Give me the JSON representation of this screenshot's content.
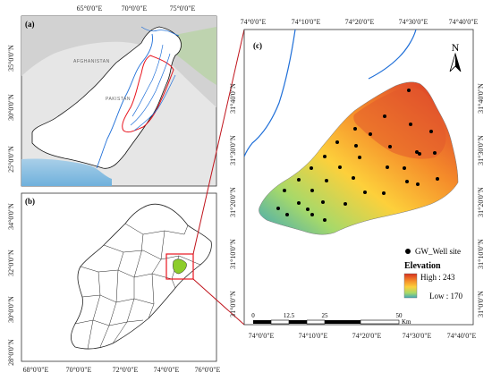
{
  "panel_a": {
    "label": "(a)",
    "top_ticks": [
      "65°0'0\"E",
      "70°0'0\"E",
      "75°0'0\"E"
    ],
    "left_ticks": [
      "35°0'0\"N",
      "30°0'0\"N",
      "25°0'0\"N"
    ],
    "country_labels": [
      "AFGHANISTAN",
      "PAKISTAN"
    ]
  },
  "panel_b": {
    "label": "(b)",
    "bottom_ticks": [
      "68°0'0\"E",
      "70°0'0\"E",
      "72°0'0\"E",
      "74°0'0\"E",
      "76°0'0\"E"
    ],
    "left_ticks": [
      "34°0'0\"N",
      "32°0'0\"N",
      "30°0'0\"N",
      "28°0'0\"N"
    ]
  },
  "panel_c": {
    "label": "(c)",
    "top_ticks": [
      "74°0'0\"E",
      "74°10'0\"E",
      "74°20'0\"E",
      "74°30'0\"E",
      "74°40'0\"E"
    ],
    "bottom_ticks": [
      "74°0'0\"E",
      "74°10'0\"E",
      "74°20'0\"E",
      "74°30'0\"E",
      "74°40'0\"E"
    ],
    "left_ticks": [
      "31°40'0\"N",
      "31°30'0\"N",
      "31°20'0\"N",
      "31°10'0\"N",
      "31°0'0\"N"
    ],
    "right_ticks": [
      "31°40'0\"N",
      "31°30'0\"N",
      "31°20'0\"N",
      "31°10'0\"N",
      "31°0'0\"N"
    ],
    "north_label": "N",
    "legend": {
      "well_label": "GW_Well site",
      "title": "Elevation",
      "high": "High : 243",
      "low": "Low : 170",
      "colors": [
        "#d7301f",
        "#f58d2a",
        "#fdd03b",
        "#a6d96a",
        "#3fa7b8"
      ]
    },
    "scale": {
      "labels": [
        "0",
        "12.5",
        "25",
        "50"
      ],
      "unit": "Km"
    }
  },
  "colors": {
    "study_area": "#e8141e",
    "rivers": "#1f6fd8",
    "district_highlight": "#8ccd2a"
  }
}
